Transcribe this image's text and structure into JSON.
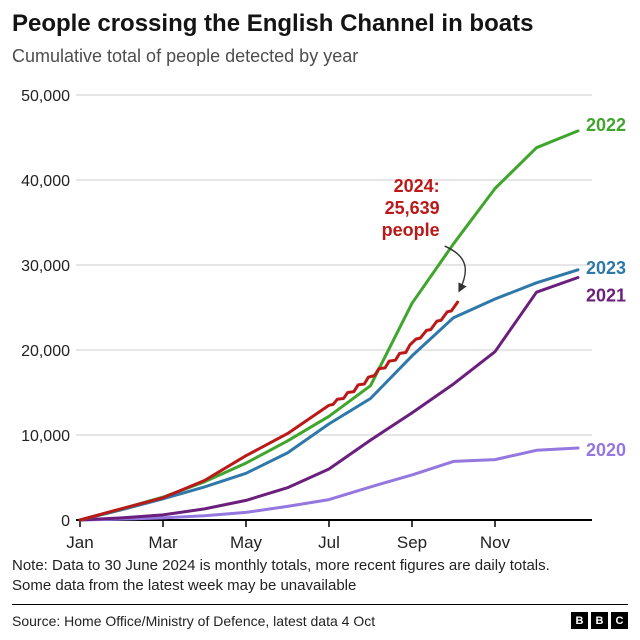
{
  "header": {
    "title": "People crossing the English Channel in boats",
    "subtitle": "Cumulative total of people detected by year"
  },
  "chart_data": {
    "type": "line",
    "title": "People crossing the English Channel in boats",
    "subtitle": "Cumulative total of people detected by year",
    "grid": true,
    "legend_position": "line-end-labels",
    "x_axis": {
      "range": [
        0,
        12
      ],
      "tick_positions": [
        0,
        2,
        4,
        6,
        8,
        10
      ],
      "tick_labels": [
        "Jan",
        "Mar",
        "May",
        "Jul",
        "Sep",
        "Nov"
      ]
    },
    "y_axis": {
      "range": [
        0,
        50000
      ],
      "ticks": [
        0,
        10000,
        20000,
        30000,
        40000,
        50000
      ],
      "tick_labels": [
        "0",
        "10,000",
        "20,000",
        "30,000",
        "40,000",
        "50,000"
      ]
    },
    "series": [
      {
        "name": "2020",
        "color": "#9577e0",
        "show_end_label": true,
        "label_dy": 2,
        "x": [
          0,
          1,
          2,
          3,
          4,
          5,
          6,
          7,
          8,
          9,
          10,
          11,
          12
        ],
        "values": [
          0,
          100,
          250,
          500,
          900,
          1600,
          2400,
          3900,
          5300,
          6900,
          7100,
          8200,
          8466
        ]
      },
      {
        "name": "2021",
        "color": "#6b1f7c",
        "show_end_label": true,
        "label_dy": 18,
        "x": [
          0,
          1,
          2,
          3,
          4,
          5,
          6,
          7,
          8,
          9,
          10,
          11,
          12
        ],
        "values": [
          0,
          250,
          600,
          1300,
          2300,
          3800,
          6000,
          9400,
          12600,
          16000,
          19800,
          26800,
          28526
        ]
      },
      {
        "name": "2023",
        "color": "#2e79a9",
        "show_end_label": true,
        "label_dy": -2,
        "x": [
          0,
          1,
          2,
          3,
          4,
          5,
          6,
          7,
          8,
          9,
          10,
          11,
          12
        ],
        "values": [
          0,
          1200,
          2500,
          3900,
          5500,
          7900,
          11300,
          14300,
          19300,
          23800,
          26000,
          27900,
          29437
        ]
      },
      {
        "name": "2022",
        "color": "#3fa52d",
        "show_end_label": true,
        "label_dy": -6,
        "x": [
          0,
          1,
          2,
          3,
          4,
          5,
          6,
          7,
          8,
          9,
          10,
          11,
          12
        ],
        "values": [
          0,
          1300,
          2700,
          4500,
          6700,
          9300,
          12200,
          15800,
          25500,
          32500,
          39000,
          43800,
          45774
        ]
      },
      {
        "name": "2024",
        "color": "#bb1919",
        "show_end_label": false,
        "x": [
          0,
          1,
          2,
          3,
          4,
          5,
          6,
          6.1,
          6.2,
          6.35,
          6.45,
          6.6,
          6.7,
          6.85,
          6.95,
          7.1,
          7.2,
          7.35,
          7.45,
          7.6,
          7.7,
          7.85,
          7.95,
          8.1,
          8.2,
          8.35,
          8.45,
          8.6,
          8.7,
          8.85,
          8.95,
          9.1
        ],
        "values": [
          0,
          1335,
          2613,
          4644,
          7567,
          10170,
          13489,
          13600,
          14200,
          14300,
          15000,
          15100,
          15900,
          16000,
          16800,
          17000,
          17800,
          17900,
          18700,
          18800,
          19600,
          19700,
          20600,
          21300,
          21400,
          22300,
          22400,
          23400,
          23500,
          24500,
          24600,
          25639
        ]
      }
    ],
    "annotation": {
      "lines": [
        "2024:",
        "25,639",
        "people"
      ],
      "value": 25639,
      "color": "#bb1919",
      "anchor_x": 9.1,
      "anchor_y": 25639
    }
  },
  "note": {
    "line1": "Note: Data to 30 June 2024 is monthly totals, more recent figures are daily totals.",
    "line2": "Some data from the latest week may be unavailable"
  },
  "footer": {
    "source": "Source: Home Office/Ministry of Defence, latest data 4 Oct",
    "logo_letters": [
      "B",
      "B",
      "C"
    ]
  }
}
